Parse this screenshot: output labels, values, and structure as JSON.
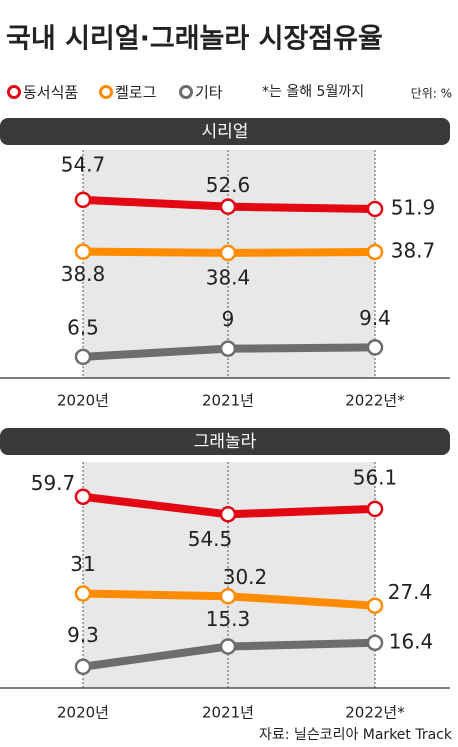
{
  "title": "국내 시리얼·그래놀라 시장점유율",
  "note": "*는 올해 5월까지",
  "unit": "단위: %",
  "source": "자료: 닐슨코리아 Market Track",
  "chart_data": [
    {
      "type": "line",
      "title": "시리얼",
      "categories": [
        "2020년",
        "2021년",
        "2022년*"
      ],
      "series": [
        {
          "name": "동서식품",
          "color": "#e30613",
          "values": [
            54.7,
            52.6,
            51.9
          ]
        },
        {
          "name": "켈로그",
          "color": "#ff8c00",
          "values": [
            38.8,
            38.4,
            38.7
          ]
        },
        {
          "name": "기타",
          "color": "#6d6d6d",
          "values": [
            6.5,
            9,
            9.4
          ]
        }
      ],
      "ylim": [
        0,
        70
      ]
    },
    {
      "type": "line",
      "title": "그래놀라",
      "categories": [
        "2020년",
        "2021년",
        "2022년*"
      ],
      "series": [
        {
          "name": "동서식품",
          "color": "#e30613",
          "values": [
            59.7,
            54.5,
            56.1
          ]
        },
        {
          "name": "켈로그",
          "color": "#ff8c00",
          "values": [
            31,
            30.2,
            27.4
          ]
        },
        {
          "name": "기타",
          "color": "#6d6d6d",
          "values": [
            9.3,
            15.3,
            16.4
          ]
        }
      ],
      "ylim": [
        3,
        70
      ]
    }
  ]
}
